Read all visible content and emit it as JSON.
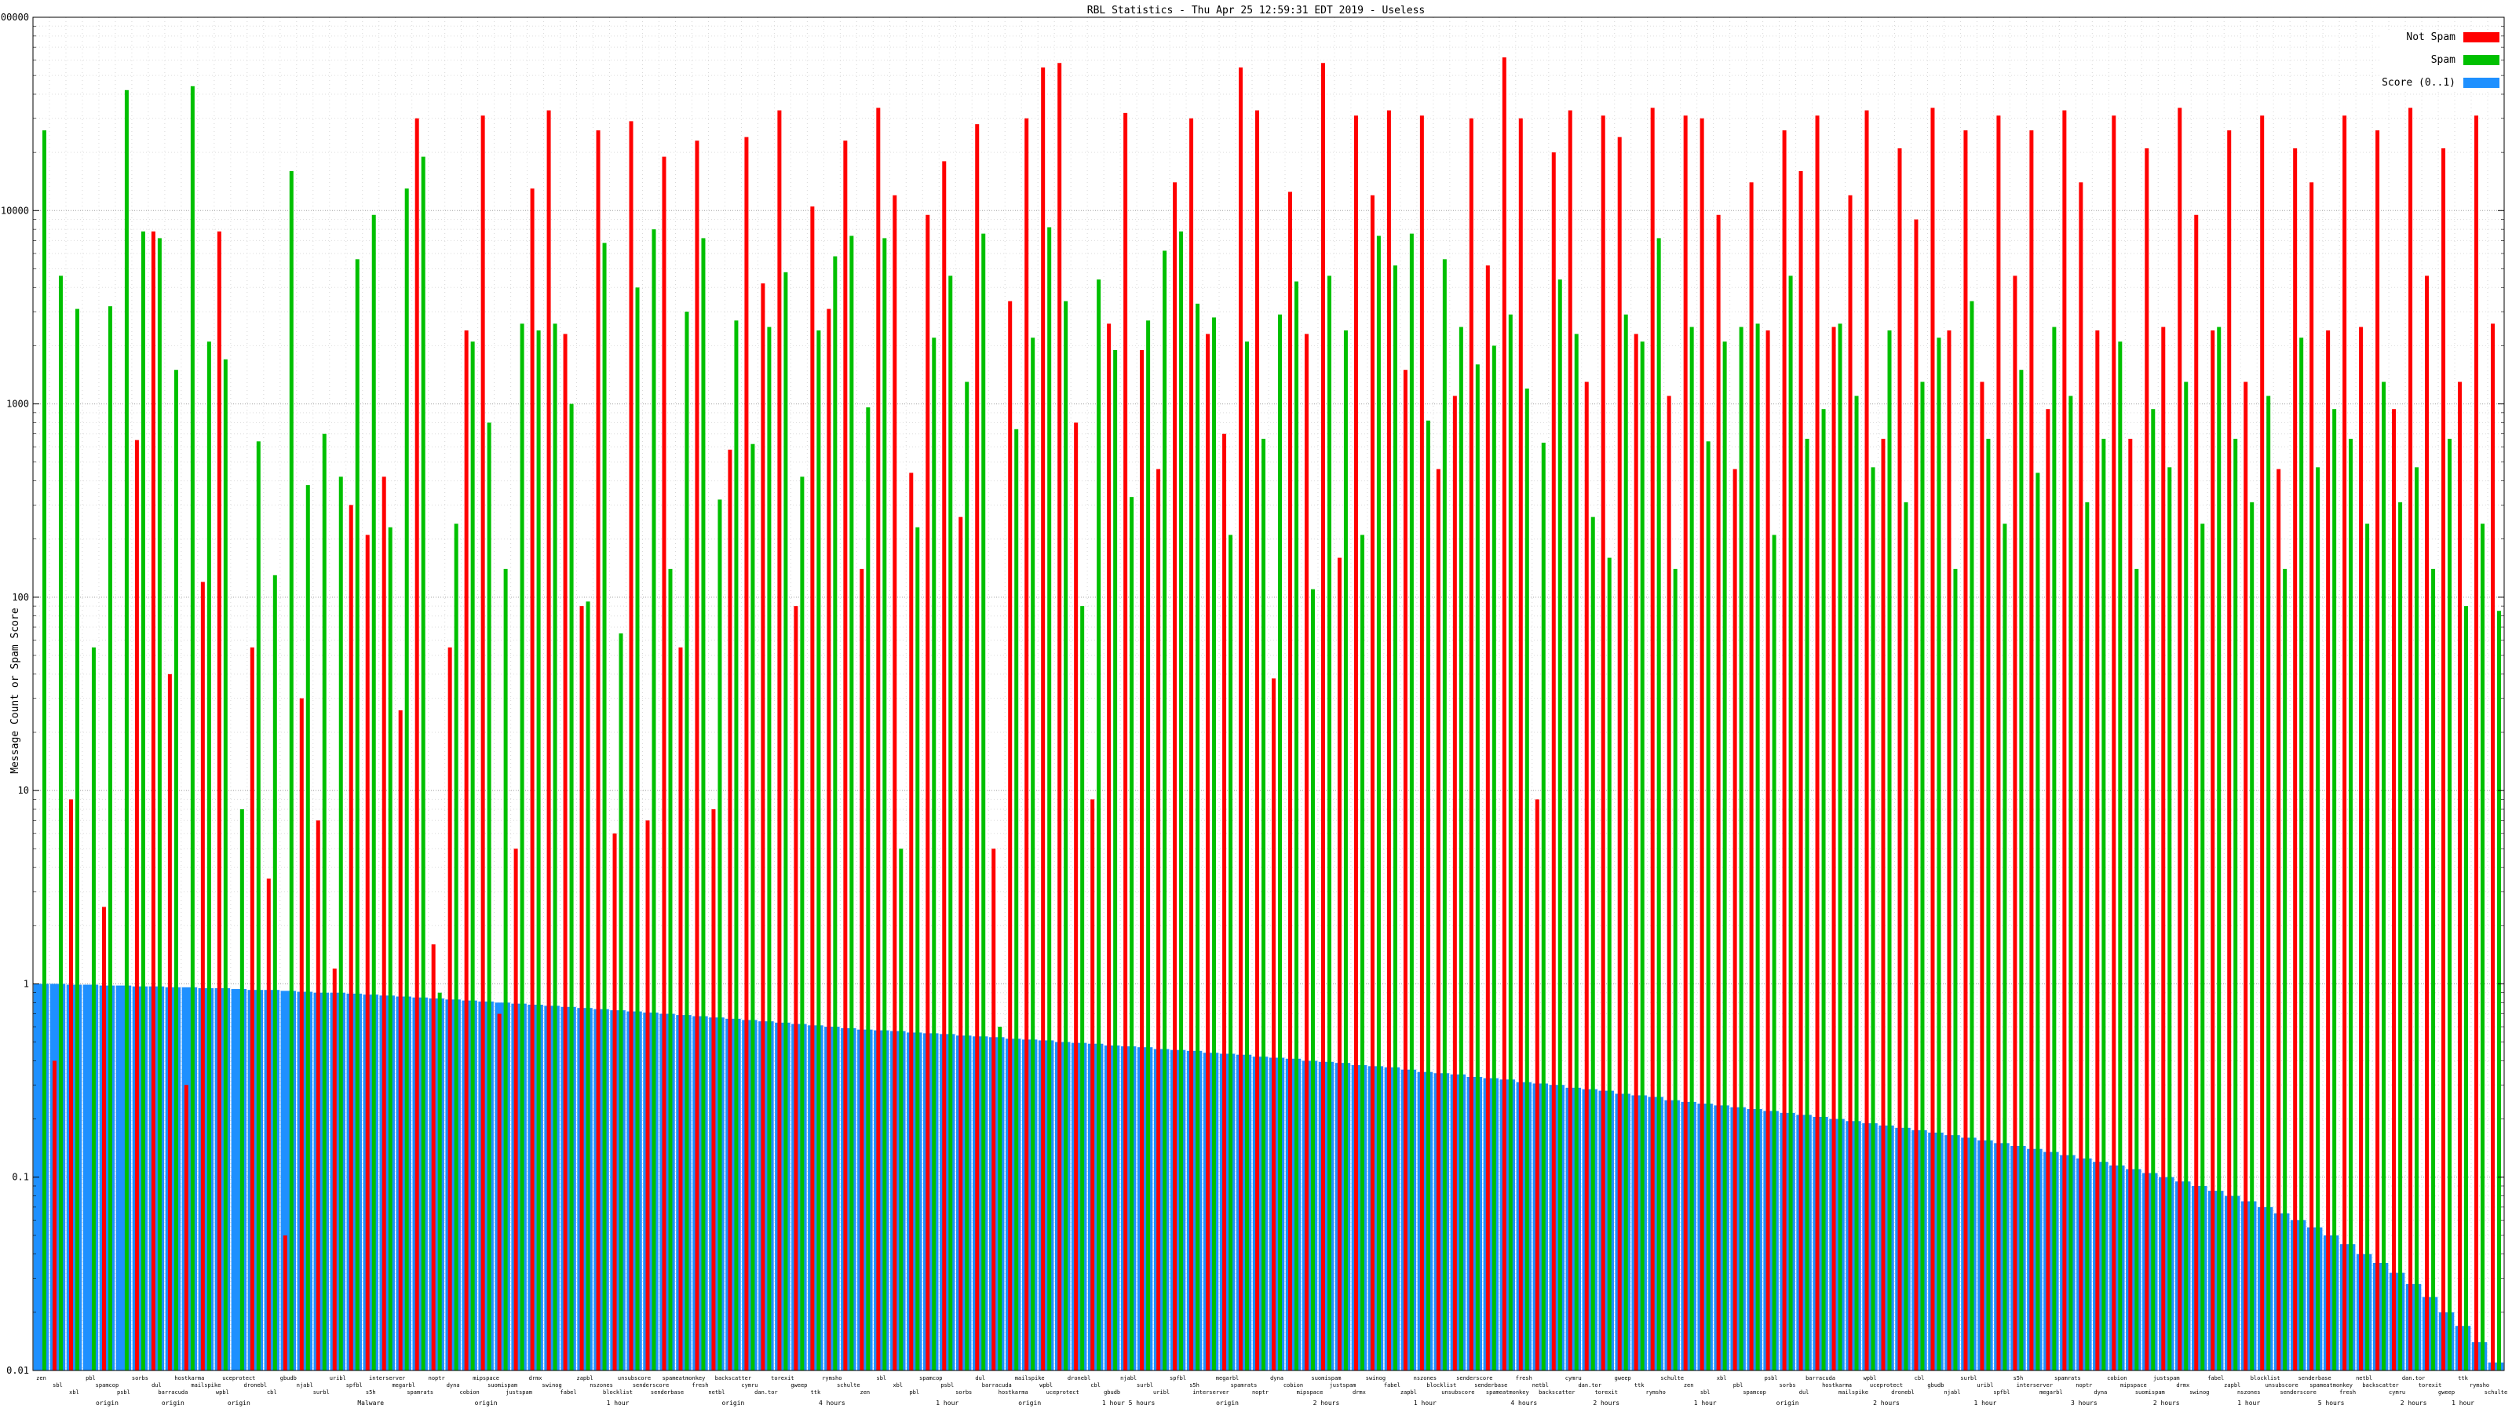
{
  "title": "RBL Statistics - Thu Apr 25 12:59:31 EDT 2019 - Useless",
  "ylabel": "Message Count or Spam Score",
  "legend": [
    {
      "label": "Not Spam",
      "color": "#ff0000"
    },
    {
      "label": "Spam",
      "color": "#00c000"
    },
    {
      "label": "Score (0..1)",
      "color": "#1e90ff"
    }
  ],
  "chart_data": {
    "type": "bar",
    "scale": "log",
    "ylim": [
      0.01,
      100000
    ],
    "grid": true,
    "legend_position": "top-right",
    "y_ticks": [
      "100000",
      "10000",
      "1000",
      "100",
      "10",
      "1",
      "0.1",
      "0.01"
    ],
    "categories": [
      "zen",
      "sbl",
      "xbl",
      "pbl",
      "spamcop",
      "psbl",
      "sorbs",
      "dul",
      "barracuda",
      "hostkarma",
      "mailspike",
      "wpbl",
      "uceprotect",
      "dronebl",
      "cbl",
      "gbudb",
      "njabl",
      "surbl",
      "uribl",
      "spfbl",
      "s5h",
      "interserver",
      "megarbl",
      "spamrats",
      "noptr",
      "dyna",
      "cobion",
      "mipspace",
      "suomispam",
      "justspam",
      "drmx",
      "swinog",
      "fabel",
      "zapbl",
      "nszones",
      "blocklist",
      "unsubscore",
      "senderscore",
      "senderbase",
      "spameatmonkey",
      "fresh",
      "netbl",
      "backscatter",
      "cymru",
      "dan.tor",
      "torexit",
      "gweep",
      "ttk",
      "rymsho",
      "schulte",
      "zen",
      "sbl",
      "xbl",
      "pbl",
      "spamcop",
      "psbl",
      "sorbs",
      "dul",
      "barracuda",
      "hostkarma",
      "mailspike",
      "wpbl",
      "uceprotect",
      "dronebl",
      "cbl",
      "gbudb",
      "njabl",
      "surbl",
      "uribl",
      "spfbl",
      "s5h",
      "interserver",
      "megarbl",
      "spamrats",
      "noptr",
      "dyna",
      "cobion",
      "mipspace",
      "suomispam",
      "justspam",
      "drmx",
      "swinog",
      "fabel",
      "zapbl",
      "nszones",
      "blocklist",
      "unsubscore",
      "senderscore",
      "senderbase",
      "spameatmonkey",
      "fresh",
      "netbl",
      "backscatter",
      "cymru",
      "dan.tor",
      "torexit",
      "gweep",
      "ttk",
      "rymsho",
      "schulte",
      "zen",
      "sbl",
      "xbl",
      "pbl",
      "spamcop",
      "psbl",
      "sorbs",
      "dul",
      "barracuda",
      "hostkarma",
      "mailspike",
      "wpbl",
      "uceprotect",
      "dronebl",
      "cbl",
      "gbudb",
      "njabl",
      "surbl",
      "uribl",
      "spfbl",
      "s5h",
      "interserver",
      "megarbl",
      "spamrats",
      "noptr",
      "dyna",
      "cobion",
      "mipspace",
      "suomispam",
      "justspam",
      "drmx",
      "swinog",
      "fabel",
      "zapbl",
      "nszones",
      "blocklist",
      "unsubscore",
      "senderscore",
      "senderbase",
      "spameatmonkey",
      "fresh",
      "netbl",
      "backscatter",
      "cymru",
      "dan.tor",
      "torexit",
      "gweep",
      "ttk",
      "rymsho",
      "schulte"
    ],
    "notes": {
      "4": "origin",
      "8": "origin",
      "12": "origin",
      "20": "Malware",
      "27": "origin",
      "35": "1 hour",
      "42": "origin",
      "48": "4 hours",
      "55": "1 hour",
      "60": "origin",
      "66": "1 hour 5 hours",
      "72": "origin",
      "78": "2 hours",
      "84": "1 hour",
      "90": "4 hours",
      "95": "2 hours",
      "101": "1 hour",
      "106": "origin",
      "112": "2 hours",
      "118": "1 hour",
      "124": "3 hours",
      "129": "2 hours",
      "134": "1 hour",
      "139": "5 hours",
      "144": "2 hours",
      "147": "1 hour"
    },
    "series": [
      {
        "name": "Not Spam",
        "color": "#ff0000",
        "values": [
          0,
          0.4,
          9,
          0,
          2.5,
          0,
          650,
          7800,
          40,
          0.3,
          120,
          7800,
          0,
          55,
          3.5,
          0.05,
          30,
          7,
          1.2,
          300,
          210,
          420,
          26,
          30000,
          1.6,
          55,
          2400,
          31000,
          0.7,
          5,
          13000,
          33000,
          2300,
          90,
          26000,
          6,
          29000,
          7,
          19000,
          55,
          23000,
          8,
          580,
          24000,
          4200,
          33000,
          90,
          10500,
          3100,
          23000,
          140,
          34000,
          12000,
          440,
          9500,
          18000,
          260,
          28000,
          5,
          3400,
          30000,
          55000,
          58000,
          800,
          9,
          2600,
          32000,
          1900,
          460,
          14000,
          30000,
          2300,
          700,
          55000,
          33000,
          38,
          12500,
          2300,
          58000,
          160,
          31000,
          12000,
          33000,
          1500,
          31000,
          460,
          1100,
          30000,
          5200,
          62000,
          30000,
          9,
          20000,
          33000,
          1300,
          31000,
          24000,
          2300,
          34000,
          1100,
          31000,
          30000,
          9500,
          460,
          14000,
          2400,
          26000,
          16000,
          31000,
          2500,
          12000,
          33000,
          660,
          21000,
          9000,
          34000,
          2400,
          26000,
          1300,
          31000,
          4600,
          26000,
          940,
          33000,
          14000,
          2400,
          31000,
          660,
          21000,
          2500,
          34000,
          9500,
          2400,
          26000,
          1300,
          31000,
          460,
          21000,
          14000,
          2400,
          31000,
          2500,
          26000,
          940,
          34000,
          4600,
          21000,
          1300,
          31000,
          2600
        ]
      },
      {
        "name": "Spam",
        "color": "#00c000",
        "values": [
          26000,
          4600,
          3100,
          55,
          3200,
          42000,
          7800,
          7200,
          1500,
          44000,
          2100,
          1700,
          8,
          640,
          130,
          16000,
          380,
          700,
          420,
          5600,
          9500,
          230,
          13000,
          19000,
          0.9,
          240,
          2100,
          800,
          140,
          2600,
          2400,
          2600,
          1000,
          95,
          6800,
          65,
          4000,
          8000,
          140,
          3000,
          7200,
          320,
          2700,
          620,
          2500,
          4800,
          420,
          2400,
          5800,
          7400,
          960,
          7200,
          5,
          230,
          2200,
          4600,
          1300,
          7600,
          0.6,
          740,
          2200,
          8200,
          3400,
          90,
          4400,
          1900,
          330,
          2700,
          6200,
          7800,
          3300,
          2800,
          210,
          2100,
          660,
          2900,
          4300,
          110,
          4600,
          2400,
          210,
          7400,
          5200,
          7600,
          820,
          5600,
          2500,
          1600,
          2000,
          2900,
          1200,
          630,
          4400,
          2300,
          260,
          160,
          2900,
          2100,
          7200,
          140,
          2500,
          640,
          2100,
          2500,
          2600,
          210,
          4600,
          660,
          940,
          2600,
          1100,
          470,
          2400,
          310,
          1300,
          2200,
          140,
          3400,
          660,
          240,
          1500,
          440,
          2500,
          1100,
          310,
          660,
          2100,
          140,
          940,
          470,
          1300,
          240,
          2500,
          660,
          310,
          1100,
          140,
          2200,
          470,
          940,
          660,
          240,
          1300,
          310,
          470,
          140,
          660,
          90,
          240,
          85
        ]
      },
      {
        "name": "Score (0..1)",
        "color": "#1e90ff",
        "values": [
          1.0,
          1.0,
          0.99,
          0.99,
          0.98,
          0.98,
          0.97,
          0.97,
          0.96,
          0.96,
          0.95,
          0.95,
          0.94,
          0.93,
          0.93,
          0.92,
          0.91,
          0.9,
          0.9,
          0.89,
          0.88,
          0.87,
          0.86,
          0.85,
          0.84,
          0.83,
          0.82,
          0.81,
          0.8,
          0.79,
          0.78,
          0.77,
          0.76,
          0.75,
          0.74,
          0.73,
          0.72,
          0.71,
          0.7,
          0.69,
          0.68,
          0.67,
          0.66,
          0.65,
          0.64,
          0.63,
          0.62,
          0.61,
          0.6,
          0.59,
          0.58,
          0.575,
          0.57,
          0.56,
          0.555,
          0.55,
          0.54,
          0.535,
          0.53,
          0.52,
          0.515,
          0.51,
          0.5,
          0.495,
          0.49,
          0.48,
          0.475,
          0.47,
          0.46,
          0.455,
          0.45,
          0.44,
          0.435,
          0.43,
          0.42,
          0.415,
          0.41,
          0.4,
          0.395,
          0.39,
          0.38,
          0.375,
          0.37,
          0.36,
          0.35,
          0.345,
          0.34,
          0.33,
          0.325,
          0.32,
          0.31,
          0.305,
          0.3,
          0.29,
          0.285,
          0.28,
          0.27,
          0.265,
          0.26,
          0.25,
          0.245,
          0.24,
          0.235,
          0.23,
          0.225,
          0.22,
          0.215,
          0.21,
          0.205,
          0.2,
          0.195,
          0.19,
          0.185,
          0.18,
          0.175,
          0.17,
          0.165,
          0.16,
          0.155,
          0.15,
          0.145,
          0.14,
          0.135,
          0.13,
          0.125,
          0.12,
          0.115,
          0.11,
          0.105,
          0.1,
          0.095,
          0.09,
          0.085,
          0.08,
          0.075,
          0.07,
          0.065,
          0.06,
          0.055,
          0.05,
          0.045,
          0.04,
          0.036,
          0.032,
          0.028,
          0.024,
          0.02,
          0.017,
          0.014,
          0.011
        ]
      }
    ]
  }
}
